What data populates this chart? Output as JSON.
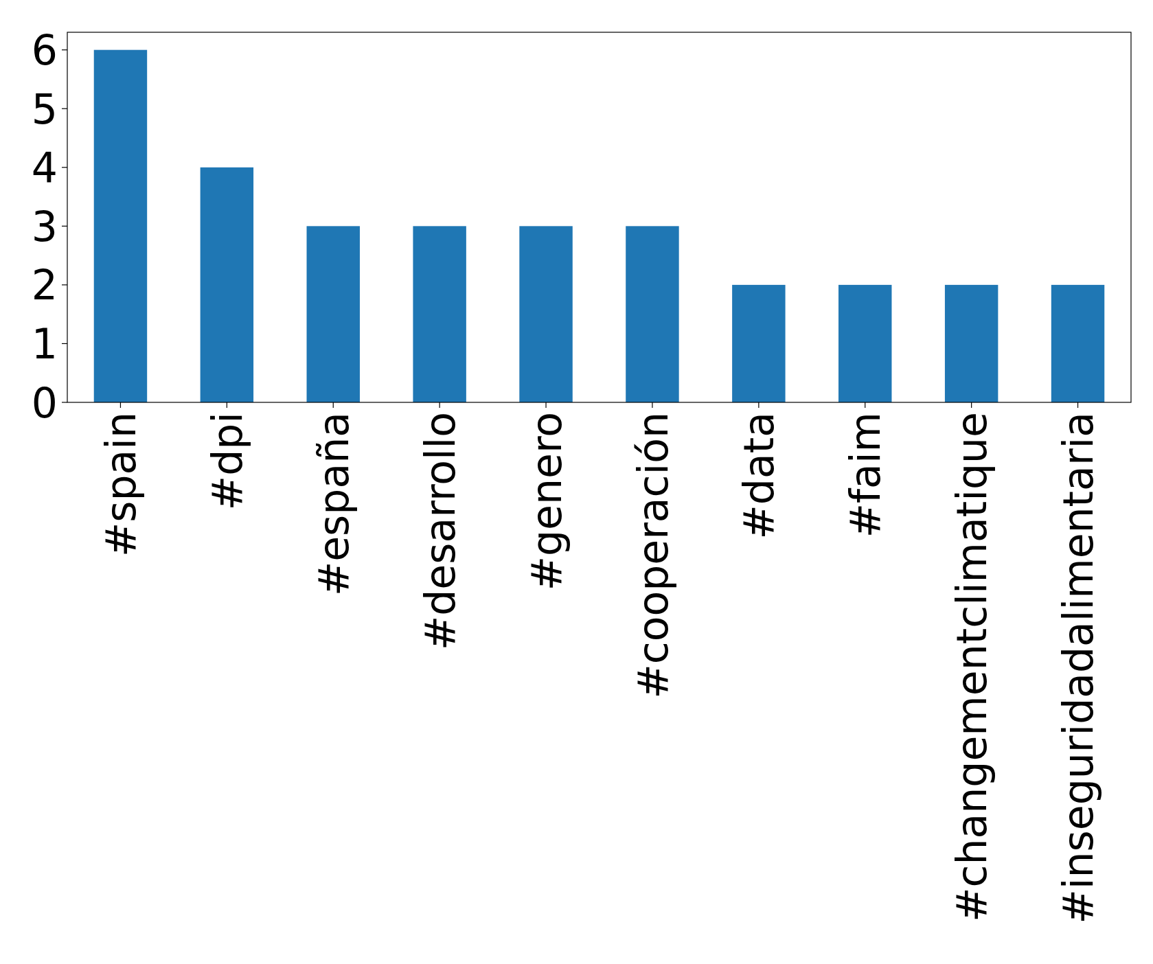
{
  "chart_data": {
    "type": "bar",
    "categories": [
      "#spain",
      "#dpi",
      "#españa",
      "#desarrollo",
      "#genero",
      "#cooperación",
      "#data",
      "#faim",
      "#changementclimatique",
      "#inseguridadalimentaria"
    ],
    "values": [
      6,
      4,
      3,
      3,
      3,
      3,
      2,
      2,
      2,
      2
    ],
    "color": "#1f77b4",
    "ylim": [
      0,
      6.3
    ],
    "yticks": [
      0,
      1,
      2,
      3,
      4,
      5,
      6
    ],
    "grid": false
  }
}
